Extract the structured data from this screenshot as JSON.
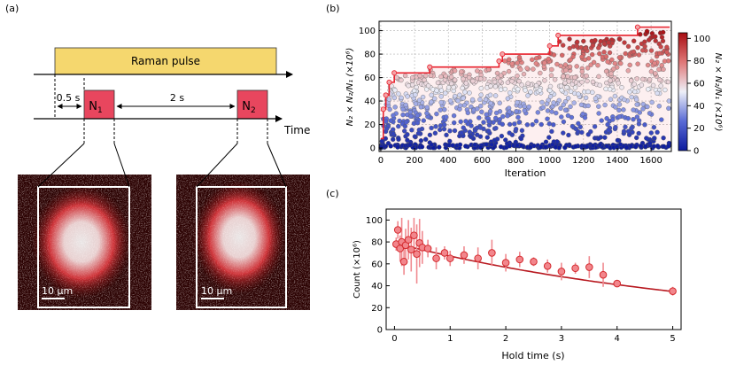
{
  "panel_labels": {
    "a": "(a)",
    "b": "(b)",
    "c": "(c)"
  },
  "diagram": {
    "pulse_label": "Raman pulse",
    "n1": "N",
    "n1_sub": "1",
    "n2": "N",
    "n2_sub": "2",
    "delay_label": "0.5 s",
    "gap_label": "2 s",
    "time_label": "Time",
    "scale_label": "10 μm",
    "colors": {
      "pulse_fill": "#f5d76e",
      "box_fill": "#e8465e",
      "arrow": "#000000"
    }
  },
  "chart_data": [
    {
      "type": "scatter",
      "panel": "b",
      "title": "",
      "xlabel": "Iteration",
      "ylabel": "N₂ × N₂/N₁ (×10⁶)",
      "colorbar_label": "N₂ × N₂/N₁ (×10⁶)",
      "xlim": [
        -10,
        1720
      ],
      "ylim": [
        -3,
        108
      ],
      "xticks": [
        0,
        200,
        400,
        600,
        800,
        1000,
        1200,
        1400,
        1600
      ],
      "yticks": [
        0,
        20,
        40,
        60,
        80,
        100
      ],
      "colorbar_ticks": [
        0,
        20,
        40,
        60,
        80,
        100
      ],
      "colorscale": "blue-white-red",
      "grid": true,
      "best_so_far": {
        "color": "#e8202c",
        "steps": [
          [
            0,
            8
          ],
          [
            15,
            33
          ],
          [
            30,
            45
          ],
          [
            50,
            56
          ],
          [
            80,
            64
          ],
          [
            290,
            69
          ],
          [
            700,
            74
          ],
          [
            720,
            80
          ],
          [
            1000,
            87
          ],
          [
            1050,
            96
          ],
          [
            1520,
            103
          ],
          [
            1710,
            103
          ]
        ]
      }
    },
    {
      "type": "scatter",
      "panel": "c",
      "title": "",
      "xlabel": "Hold time (s)",
      "ylabel": "Count (×10⁶)",
      "xlim": [
        -0.15,
        5.15
      ],
      "ylim": [
        0,
        110
      ],
      "xticks": [
        0,
        1,
        2,
        3,
        4,
        5
      ],
      "yticks": [
        0,
        20,
        40,
        60,
        80,
        100
      ],
      "grid": false,
      "points": [
        {
          "x": 0.03,
          "y": 78,
          "err": 6
        },
        {
          "x": 0.06,
          "y": 91,
          "err": 8
        },
        {
          "x": 0.1,
          "y": 74,
          "err": 12
        },
        {
          "x": 0.13,
          "y": 80,
          "err": 22
        },
        {
          "x": 0.17,
          "y": 62,
          "err": 12
        },
        {
          "x": 0.2,
          "y": 77,
          "err": 15
        },
        {
          "x": 0.25,
          "y": 82,
          "err": 18
        },
        {
          "x": 0.3,
          "y": 73,
          "err": 20
        },
        {
          "x": 0.35,
          "y": 86,
          "err": 16
        },
        {
          "x": 0.4,
          "y": 69,
          "err": 27
        },
        {
          "x": 0.45,
          "y": 79,
          "err": 22
        },
        {
          "x": 0.5,
          "y": 75,
          "err": 15
        },
        {
          "x": 0.6,
          "y": 74,
          "err": 8
        },
        {
          "x": 0.75,
          "y": 65,
          "err": 10
        },
        {
          "x": 0.9,
          "y": 70,
          "err": 6
        },
        {
          "x": 1.0,
          "y": 65,
          "err": 7
        },
        {
          "x": 1.25,
          "y": 68,
          "err": 8
        },
        {
          "x": 1.5,
          "y": 65,
          "err": 10
        },
        {
          "x": 1.75,
          "y": 70,
          "err": 12
        },
        {
          "x": 2.0,
          "y": 61,
          "err": 8
        },
        {
          "x": 2.25,
          "y": 64,
          "err": 7
        },
        {
          "x": 2.5,
          "y": 62,
          "err": 4
        },
        {
          "x": 2.75,
          "y": 58,
          "err": 6
        },
        {
          "x": 3.0,
          "y": 53,
          "err": 8
        },
        {
          "x": 3.25,
          "y": 56,
          "err": 5
        },
        {
          "x": 3.5,
          "y": 57,
          "err": 10
        },
        {
          "x": 3.75,
          "y": 50,
          "err": 11
        },
        {
          "x": 4.0,
          "y": 42,
          "err": 2
        },
        {
          "x": 5.0,
          "y": 35,
          "err": 4
        }
      ],
      "fit": {
        "a": 79,
        "tau": 6.1
      },
      "colors": {
        "marker": "#f2868c",
        "edge": "#d42a2e",
        "fit": "#b81920"
      }
    }
  ]
}
